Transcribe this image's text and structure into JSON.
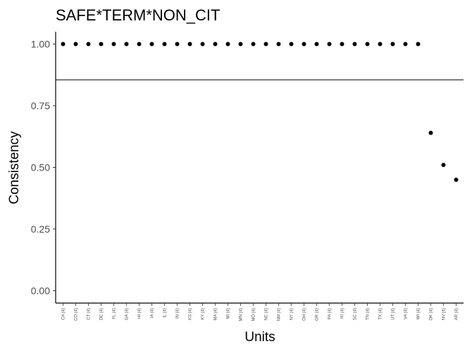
{
  "chart_data": {
    "type": "scatter",
    "title": "SAFE*TERM*NON_CIT",
    "xlabel": "Units",
    "ylabel": "Consistency",
    "ylim": [
      -0.05,
      1.05
    ],
    "yticks": [
      "0.00",
      "0.25",
      "0.50",
      "0.75",
      "1.00"
    ],
    "grid": false,
    "categories": [
      "CA (4)",
      "CO (4)",
      "CT (4)",
      "DE (4)",
      "FL (4)",
      "GA (4)",
      "HI (4)",
      "IA (4)",
      "IL (4)",
      "IN (4)",
      "KS (4)",
      "KY (4)",
      "MA (4)",
      "MI (4)",
      "MN (4)",
      "MO (4)",
      "NC (4)",
      "NM (4)",
      "NY (4)",
      "OH (4)",
      "OR (4)",
      "PA (4)",
      "RI (4)",
      "SC (4)",
      "TN (4)",
      "TX (4)",
      "UT (4)",
      "VA (4)",
      "WI (4)",
      "OK (4)",
      "NV (4)",
      "AR (4)"
    ],
    "values": [
      1,
      1,
      1,
      1,
      1,
      1,
      1,
      1,
      1,
      1,
      1,
      1,
      1,
      1,
      1,
      1,
      1,
      1,
      1,
      1,
      1,
      1,
      1,
      1,
      1,
      1,
      1,
      1,
      1,
      0.64,
      0.51,
      0.45
    ],
    "hline": 0.855,
    "point_color": "#000000",
    "line_color": "#000000"
  }
}
